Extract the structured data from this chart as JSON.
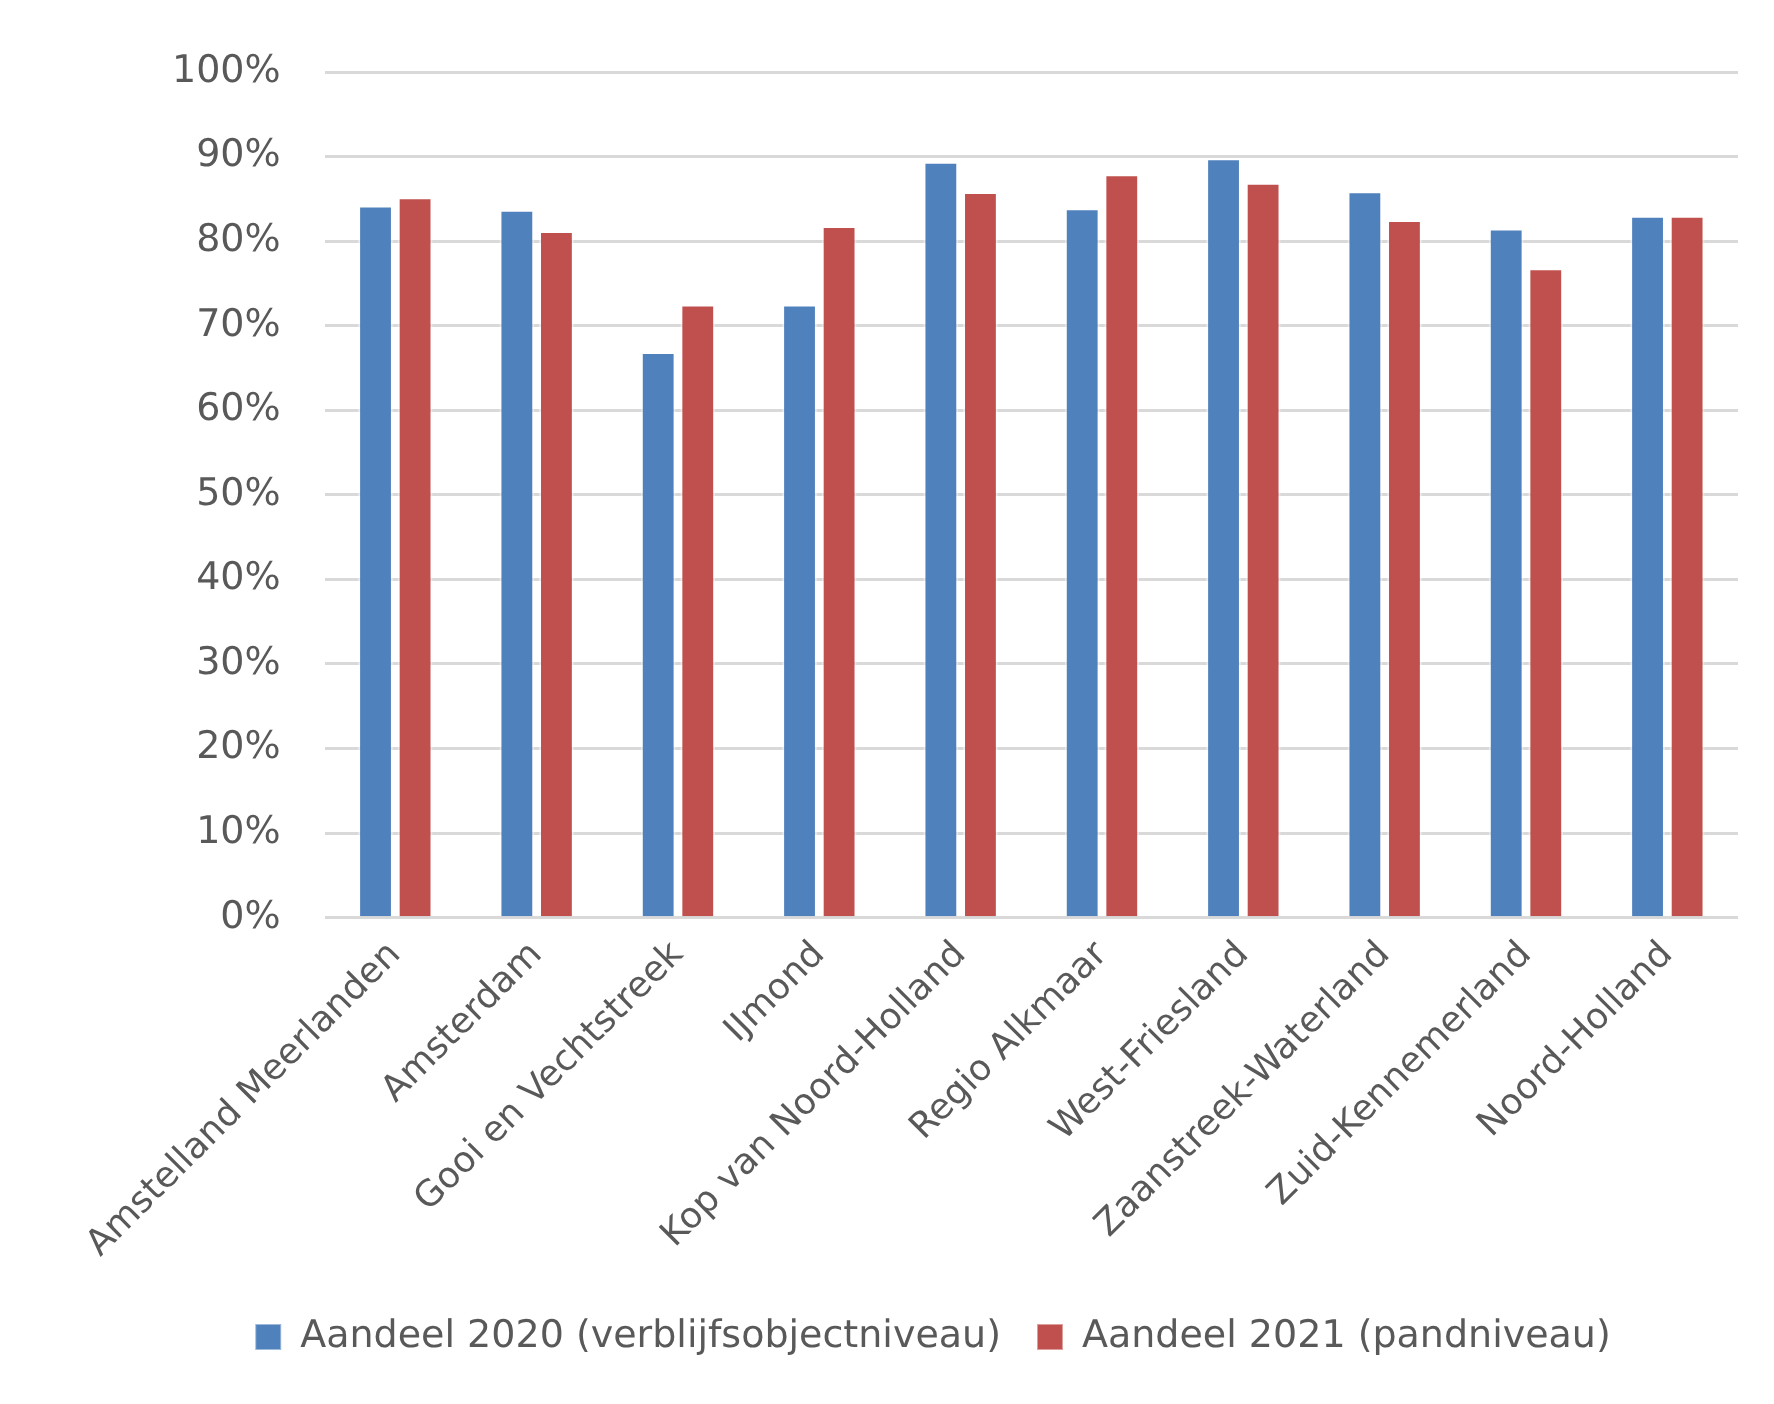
{
  "chart_data": {
    "type": "bar",
    "categories": [
      "Amstelland Meerlanden",
      "Amsterdam",
      "Gooi en Vechtstreek",
      "IJmond",
      "Kop van Noord-Holland",
      "Regio Alkmaar",
      "West-Friesland",
      "Zaanstreek-Waterland",
      "Zuid-Kennemerland",
      "Noord-Holland"
    ],
    "series": [
      {
        "name": "Aandeel 2020 (verblijfsobjectniveau)",
        "color": "#4f81bd",
        "values": [
          84.2,
          83.7,
          66.9,
          72.5,
          89.4,
          83.9,
          89.8,
          85.9,
          81.5,
          83.0
        ]
      },
      {
        "name": "Aandeel 2021 (pandniveau)",
        "color": "#c0504d",
        "values": [
          85.2,
          81.2,
          72.5,
          81.8,
          85.8,
          87.9,
          86.9,
          82.5,
          76.8,
          83.0
        ]
      }
    ],
    "ylim": [
      0,
      100
    ],
    "yticks": [
      {
        "value": 0,
        "label": "0%"
      },
      {
        "value": 10,
        "label": "10%"
      },
      {
        "value": 20,
        "label": "20%"
      },
      {
        "value": 30,
        "label": "30%"
      },
      {
        "value": 40,
        "label": "40%"
      },
      {
        "value": 50,
        "label": "50%"
      },
      {
        "value": 60,
        "label": "60%"
      },
      {
        "value": 70,
        "label": "70%"
      },
      {
        "value": 80,
        "label": "80%"
      },
      {
        "value": 90,
        "label": "90%"
      },
      {
        "value": 100,
        "label": "100%"
      }
    ],
    "grid": "y",
    "legend": "bottom"
  }
}
